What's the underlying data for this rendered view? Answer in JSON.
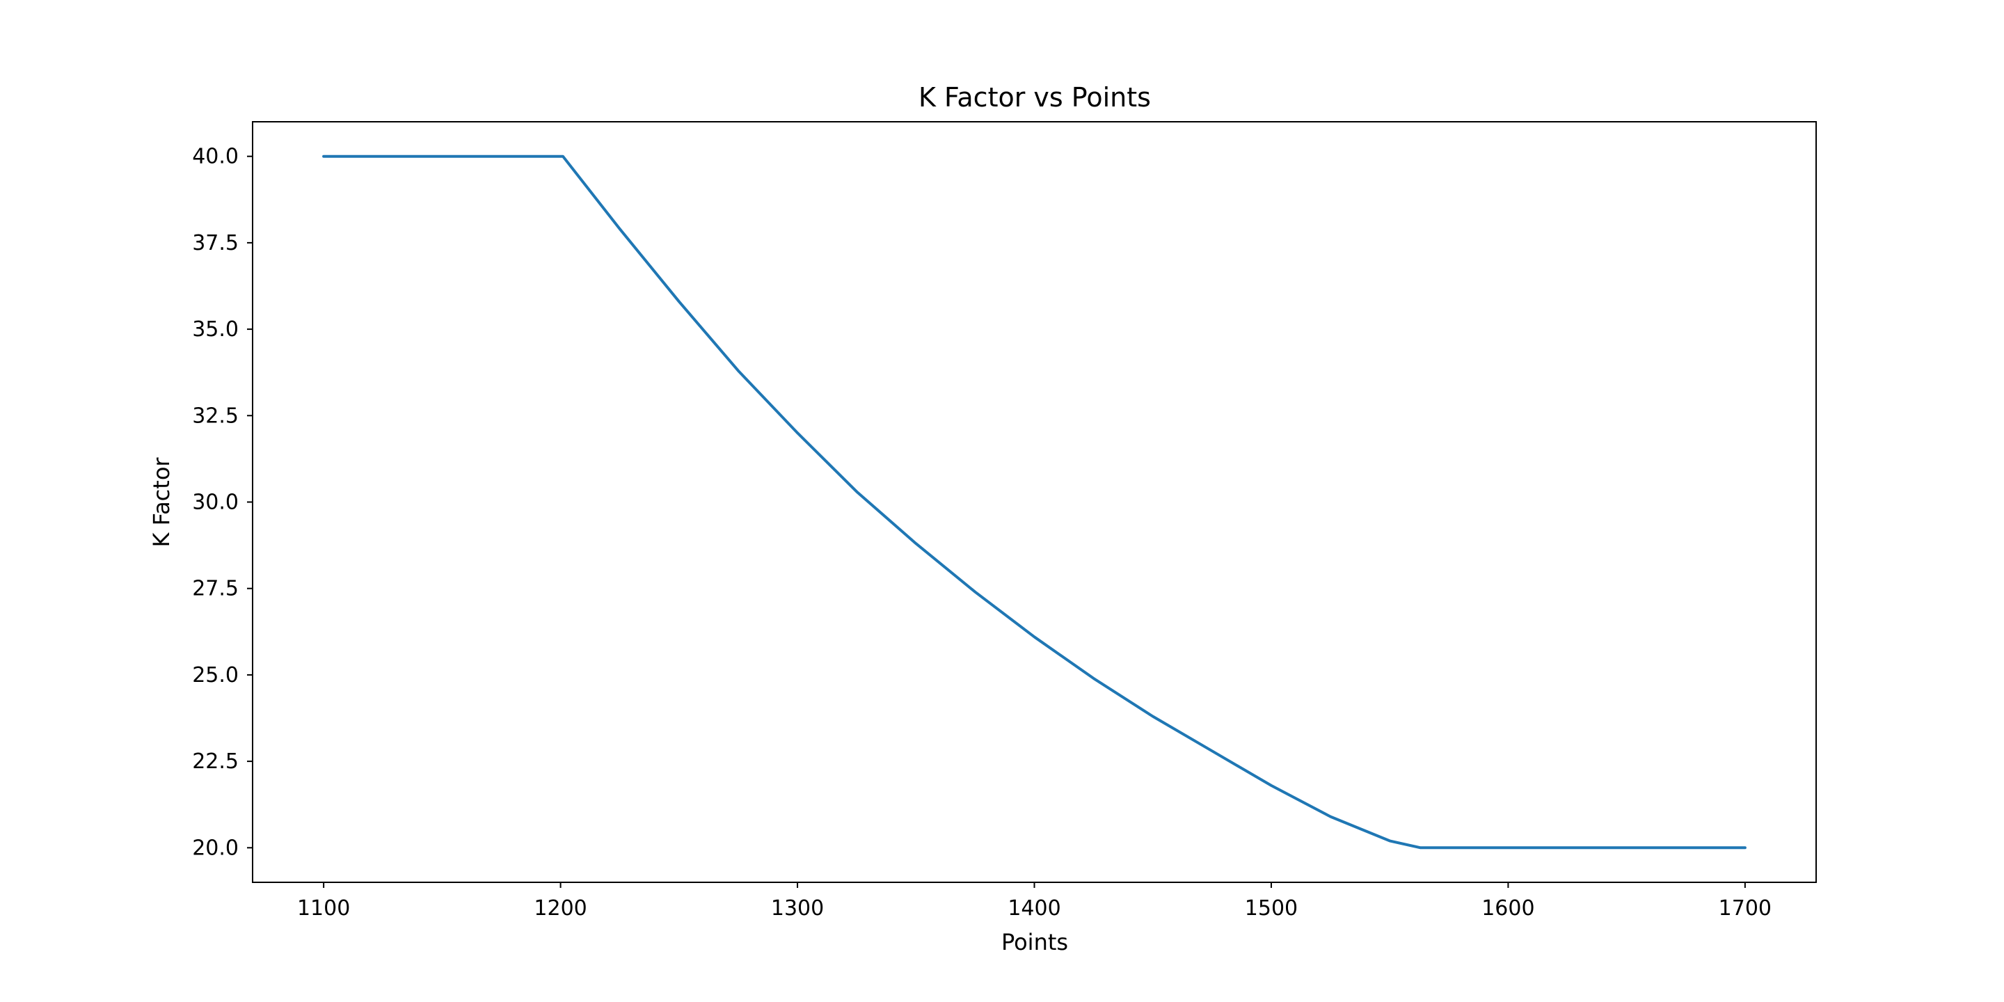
{
  "chart_data": {
    "type": "line",
    "title": "K Factor vs Points",
    "xlabel": "Points",
    "ylabel": "K Factor",
    "xlim": [
      1070,
      1730
    ],
    "ylim": [
      19,
      41
    ],
    "xticks": [
      1100,
      1200,
      1300,
      1400,
      1500,
      1600,
      1700
    ],
    "yticks": [
      20.0,
      22.5,
      25.0,
      27.5,
      30.0,
      32.5,
      35.0,
      37.5,
      40.0
    ],
    "xtick_labels": [
      "1100",
      "1200",
      "1300",
      "1400",
      "1500",
      "1600",
      "1700"
    ],
    "ytick_labels": [
      "20.0",
      "22.5",
      "25.0",
      "27.5",
      "30.0",
      "32.5",
      "35.0",
      "37.5",
      "40.0"
    ],
    "grid": false,
    "series": [
      {
        "color": "#1f77b4",
        "x": [
          1100,
          1150,
          1201,
          1225,
          1250,
          1275,
          1300,
          1325,
          1350,
          1375,
          1400,
          1425,
          1450,
          1475,
          1500,
          1525,
          1550,
          1563,
          1600,
          1650,
          1700
        ],
        "y": [
          40.0,
          40.0,
          40.0,
          37.9,
          35.8,
          33.8,
          32.0,
          30.3,
          28.8,
          27.4,
          26.1,
          24.9,
          23.8,
          22.8,
          21.8,
          20.9,
          20.2,
          20.0,
          20.0,
          20.0,
          20.0
        ]
      }
    ]
  }
}
